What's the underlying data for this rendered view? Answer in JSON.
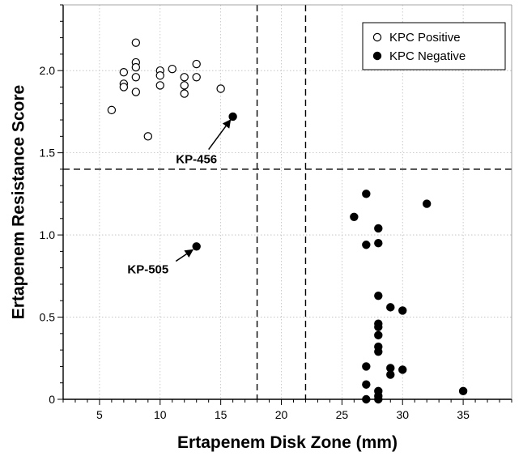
{
  "chart_data": {
    "type": "scatter",
    "xlabel": "Ertapenem Disk Zone (mm)",
    "ylabel": "Ertapenem Resistance Score",
    "xlim": [
      2,
      39
    ],
    "ylim": [
      0,
      2.4
    ],
    "xticks": [
      5,
      10,
      15,
      20,
      25,
      30,
      35
    ],
    "yticks": [
      0,
      0.5,
      1.0,
      1.5,
      2.0
    ],
    "ytick_labels": [
      "0",
      "0.5",
      "1.0",
      "1.5",
      "2.0"
    ],
    "grid": true,
    "legend_position": "top-right",
    "series": [
      {
        "name": "KPC Positive",
        "marker": "open-circle",
        "points": [
          [
            6,
            1.76
          ],
          [
            7,
            1.99
          ],
          [
            7,
            1.92
          ],
          [
            7,
            1.9
          ],
          [
            8,
            2.17
          ],
          [
            8,
            2.05
          ],
          [
            8,
            2.02
          ],
          [
            8,
            1.96
          ],
          [
            8,
            1.87
          ],
          [
            9,
            1.6
          ],
          [
            10,
            2.0
          ],
          [
            10,
            1.97
          ],
          [
            10,
            1.91
          ],
          [
            11,
            2.01
          ],
          [
            12,
            1.96
          ],
          [
            12,
            1.91
          ],
          [
            12,
            1.86
          ],
          [
            13,
            2.04
          ],
          [
            13,
            1.96
          ],
          [
            15,
            1.89
          ]
        ]
      },
      {
        "name": "KPC Negative",
        "marker": "filled-circle",
        "points": [
          [
            16,
            1.72
          ],
          [
            13,
            0.93
          ],
          [
            26,
            1.11
          ],
          [
            27,
            1.25
          ],
          [
            27,
            0.94
          ],
          [
            28,
            1.04
          ],
          [
            28,
            0.95
          ],
          [
            32,
            1.19
          ],
          [
            28,
            0.63
          ],
          [
            29,
            0.56
          ],
          [
            30,
            0.54
          ],
          [
            28,
            0.46
          ],
          [
            28,
            0.44
          ],
          [
            28,
            0.39
          ],
          [
            28,
            0.32
          ],
          [
            28,
            0.29
          ],
          [
            27,
            0.2
          ],
          [
            29,
            0.19
          ],
          [
            29,
            0.15
          ],
          [
            30,
            0.18
          ],
          [
            27,
            0.09
          ],
          [
            28,
            0.05
          ],
          [
            28,
            0.02
          ],
          [
            27,
            0.0
          ],
          [
            28,
            0.0
          ],
          [
            35,
            0.05
          ]
        ]
      }
    ],
    "reference_lines": {
      "vertical": [
        18,
        22
      ],
      "horizontal": [
        1.4
      ],
      "style": "dashed"
    },
    "annotations": [
      {
        "text": "KP-456",
        "text_at": [
          13.0,
          1.46
        ],
        "arrow_from": [
          14.0,
          1.52
        ],
        "arrow_to": [
          15.8,
          1.7
        ]
      },
      {
        "text": "KP-505",
        "text_at": [
          9.0,
          0.79
        ],
        "arrow_from": [
          11.3,
          0.84
        ],
        "arrow_to": [
          12.7,
          0.91
        ]
      }
    ]
  }
}
